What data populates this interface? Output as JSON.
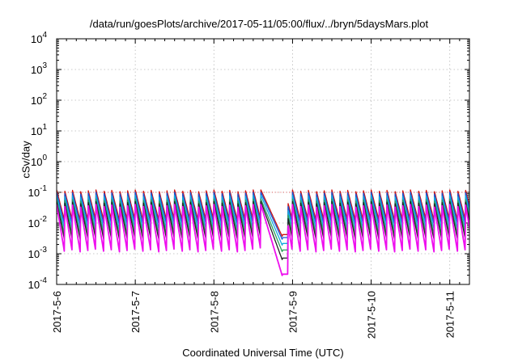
{
  "chart_data": {
    "type": "line",
    "title": "/data/run/goesPlots/archive/2017-05-11/05:00/flux/../bryn/5daysMars.plot",
    "xlabel": "Coordinated Universal Time (UTC)",
    "ylabel": "cSv/day",
    "yscale": "log",
    "ylim": [
      0.0001,
      10000
    ],
    "y_ticks": [
      {
        "value": 0.0001,
        "mant": "10",
        "exp": "-4"
      },
      {
        "value": 0.001,
        "mant": "10",
        "exp": "-3"
      },
      {
        "value": 0.01,
        "mant": "10",
        "exp": "-2"
      },
      {
        "value": 0.1,
        "mant": "10",
        "exp": "-1"
      },
      {
        "value": 1,
        "mant": "10",
        "exp": "0"
      },
      {
        "value": 10,
        "mant": "10",
        "exp": "1"
      },
      {
        "value": 100,
        "mant": "10",
        "exp": "2"
      },
      {
        "value": 1000,
        "mant": "10",
        "exp": "3"
      },
      {
        "value": 10000,
        "mant": "10",
        "exp": "4"
      }
    ],
    "xlim": [
      "2017-05-06T00:00",
      "2017-05-11T06:00"
    ],
    "x_ticks": [
      "2017-5-6",
      "2017-5-7",
      "2017-5-8",
      "2017-5-9",
      "2017-5-10",
      "2017-5-11"
    ],
    "grid": true,
    "reference_level": 0.1,
    "reference_color": "#e03030",
    "sawtooth_cycle_hours": 2.4,
    "dip_time": "2017-05-08T20:20",
    "series": [
      {
        "color": "#cc1111",
        "peak": 0.12,
        "trough": 0.012,
        "dip_min": 0.0035
      },
      {
        "color": "#1a55d8",
        "peak": 0.1,
        "trough": 0.009,
        "dip_min": 0.0028
      },
      {
        "color": "#11aadd",
        "peak": 0.08,
        "trough": 0.006,
        "dip_min": 0.0018
      },
      {
        "color": "#2aa05a",
        "peak": 0.06,
        "trough": 0.004,
        "dip_min": 0.0011
      },
      {
        "color": "#222222",
        "peak": 0.05,
        "trough": 0.0028,
        "dip_min": 0.0006
      },
      {
        "color": "#ee10ee",
        "peak": 0.04,
        "trough": 0.0011,
        "dip_min": 0.00018
      }
    ]
  }
}
